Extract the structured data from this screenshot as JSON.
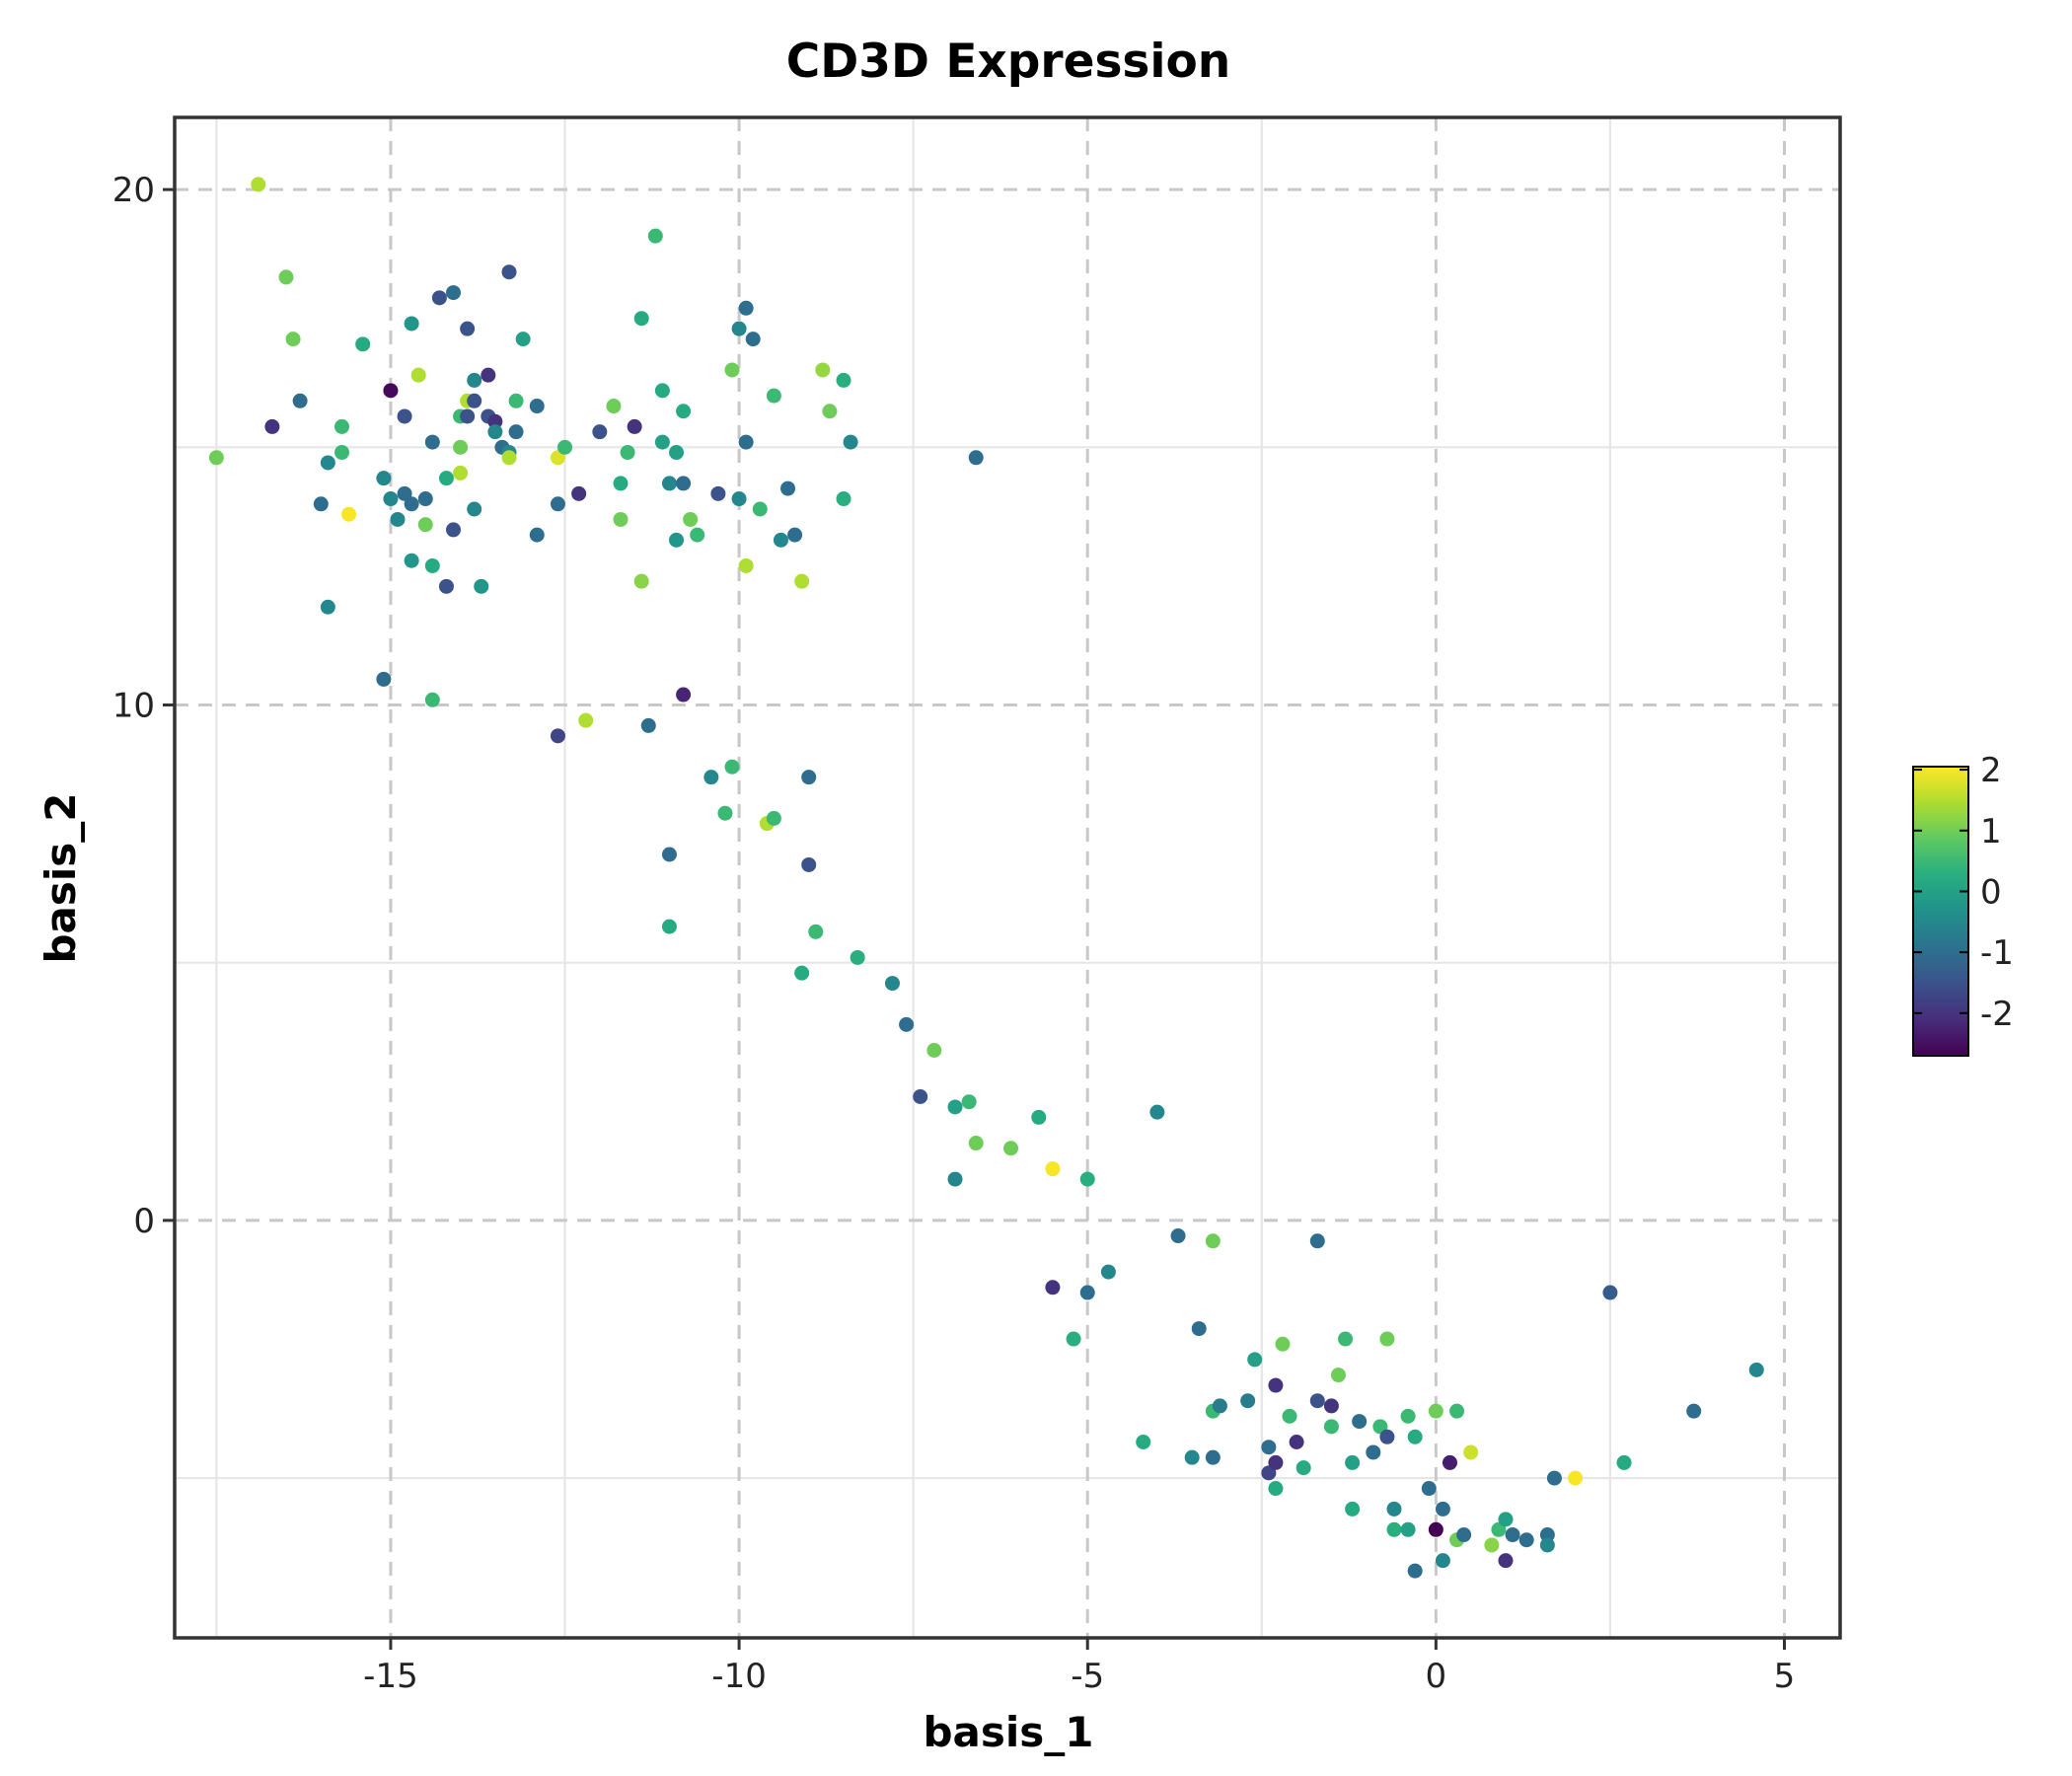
{
  "chart_data": {
    "type": "scatter",
    "title": "CD3D Expression",
    "xlabel": "basis_1",
    "ylabel": "basis_2",
    "xlim": [
      -18.1,
      5.8
    ],
    "ylim": [
      -8.1,
      21.4
    ],
    "x_ticks": [
      -15,
      -10,
      -5,
      0,
      5
    ],
    "x_tick_labels": [
      "-15",
      "-10",
      "-5",
      "0",
      "5"
    ],
    "y_ticks": [
      0,
      10,
      20
    ],
    "y_tick_labels": [
      "0",
      "10",
      "20"
    ],
    "colorbar": {
      "colormap": "viridis",
      "range": [
        -2.7,
        2.05
      ],
      "ticks": [
        2,
        1,
        0,
        -1,
        -2
      ],
      "tick_labels": [
        "2",
        "1",
        "0",
        "-1",
        "-2"
      ]
    },
    "grid": "dashed major, light minor",
    "points": [
      {
        "x": -17.5,
        "y": 14.8,
        "v": 1.0
      },
      {
        "x": -16.9,
        "y": 20.1,
        "v": 1.5
      },
      {
        "x": -16.7,
        "y": 15.4,
        "v": -2.0
      },
      {
        "x": -16.5,
        "y": 18.3,
        "v": 1.0
      },
      {
        "x": -16.4,
        "y": 17.1,
        "v": 1.0
      },
      {
        "x": -16.3,
        "y": 15.9,
        "v": -1.0
      },
      {
        "x": -16.0,
        "y": 13.9,
        "v": -1.0
      },
      {
        "x": -15.9,
        "y": 14.7,
        "v": -0.5
      },
      {
        "x": -15.9,
        "y": 11.9,
        "v": -0.5
      },
      {
        "x": -15.7,
        "y": 15.4,
        "v": 0.5
      },
      {
        "x": -15.7,
        "y": 14.9,
        "v": 0.5
      },
      {
        "x": -15.6,
        "y": 13.7,
        "v": 2.0
      },
      {
        "x": -15.4,
        "y": 17.0,
        "v": 0.2
      },
      {
        "x": -15.1,
        "y": 10.5,
        "v": -1.0
      },
      {
        "x": -15.1,
        "y": 14.4,
        "v": -0.5
      },
      {
        "x": -15.0,
        "y": 16.1,
        "v": -2.6
      },
      {
        "x": -15.0,
        "y": 14.0,
        "v": -0.5
      },
      {
        "x": -14.9,
        "y": 13.6,
        "v": -0.5
      },
      {
        "x": -14.8,
        "y": 15.6,
        "v": -1.5
      },
      {
        "x": -14.8,
        "y": 14.1,
        "v": -1.0
      },
      {
        "x": -14.7,
        "y": 17.4,
        "v": -0.2
      },
      {
        "x": -14.7,
        "y": 12.8,
        "v": -0.2
      },
      {
        "x": -14.7,
        "y": 13.9,
        "v": -1.0
      },
      {
        "x": -14.6,
        "y": 16.4,
        "v": 1.5
      },
      {
        "x": -14.5,
        "y": 14.0,
        "v": -1.0
      },
      {
        "x": -14.5,
        "y": 13.5,
        "v": 1.0
      },
      {
        "x": -14.4,
        "y": 15.1,
        "v": -1.0
      },
      {
        "x": -14.4,
        "y": 12.7,
        "v": 0.2
      },
      {
        "x": -14.4,
        "y": 10.1,
        "v": 0.5
      },
      {
        "x": -14.3,
        "y": 17.9,
        "v": -1.5
      },
      {
        "x": -14.2,
        "y": 14.4,
        "v": 0.2
      },
      {
        "x": -14.2,
        "y": 12.3,
        "v": -1.5
      },
      {
        "x": -14.1,
        "y": 18.0,
        "v": -1.0
      },
      {
        "x": -14.1,
        "y": 13.4,
        "v": -1.5
      },
      {
        "x": -14.0,
        "y": 15.6,
        "v": 0.5
      },
      {
        "x": -14.0,
        "y": 15.0,
        "v": 1.0
      },
      {
        "x": -14.0,
        "y": 14.5,
        "v": 1.5
      },
      {
        "x": -13.9,
        "y": 17.3,
        "v": -1.5
      },
      {
        "x": -13.9,
        "y": 15.6,
        "v": -1.5
      },
      {
        "x": -13.9,
        "y": 15.9,
        "v": 1.5
      },
      {
        "x": -13.8,
        "y": 15.9,
        "v": -1.5
      },
      {
        "x": -13.8,
        "y": 16.3,
        "v": -0.5
      },
      {
        "x": -13.8,
        "y": 13.8,
        "v": -0.5
      },
      {
        "x": -13.7,
        "y": 12.3,
        "v": -0.2
      },
      {
        "x": -13.6,
        "y": 16.4,
        "v": -2.0
      },
      {
        "x": -13.6,
        "y": 15.6,
        "v": -1.5
      },
      {
        "x": -13.5,
        "y": 15.5,
        "v": -2.0
      },
      {
        "x": -13.5,
        "y": 15.3,
        "v": -0.5
      },
      {
        "x": -13.4,
        "y": 15.0,
        "v": -1.0
      },
      {
        "x": -13.3,
        "y": 14.9,
        "v": -0.5
      },
      {
        "x": -13.3,
        "y": 18.4,
        "v": -1.5
      },
      {
        "x": -13.3,
        "y": 14.8,
        "v": 1.5
      },
      {
        "x": -13.2,
        "y": 15.9,
        "v": 0.5
      },
      {
        "x": -13.2,
        "y": 15.3,
        "v": -1.0
      },
      {
        "x": -13.1,
        "y": 17.1,
        "v": 0.0
      },
      {
        "x": -12.9,
        "y": 15.8,
        "v": -1.0
      },
      {
        "x": -12.9,
        "y": 13.3,
        "v": -1.0
      },
      {
        "x": -12.6,
        "y": 14.8,
        "v": 1.8
      },
      {
        "x": -12.6,
        "y": 13.9,
        "v": -1.0
      },
      {
        "x": -12.6,
        "y": 9.4,
        "v": -1.7
      },
      {
        "x": -12.5,
        "y": 15.0,
        "v": 0.5
      },
      {
        "x": -12.3,
        "y": 14.1,
        "v": -2.0
      },
      {
        "x": -12.2,
        "y": 9.7,
        "v": 1.5
      },
      {
        "x": -12.0,
        "y": 15.3,
        "v": -1.5
      },
      {
        "x": -11.8,
        "y": 15.8,
        "v": 1.0
      },
      {
        "x": -11.7,
        "y": 14.3,
        "v": 0.2
      },
      {
        "x": -11.7,
        "y": 13.6,
        "v": 1.0
      },
      {
        "x": -11.6,
        "y": 14.9,
        "v": 0.5
      },
      {
        "x": -11.5,
        "y": 15.4,
        "v": -2.0
      },
      {
        "x": -11.4,
        "y": 17.5,
        "v": 0.2
      },
      {
        "x": -11.4,
        "y": 12.4,
        "v": 1.2
      },
      {
        "x": -11.3,
        "y": 9.6,
        "v": -1.0
      },
      {
        "x": -11.2,
        "y": 19.1,
        "v": 0.5
      },
      {
        "x": -11.1,
        "y": 16.1,
        "v": 0.2
      },
      {
        "x": -11.1,
        "y": 15.1,
        "v": 0.0
      },
      {
        "x": -11.0,
        "y": 14.3,
        "v": -0.5
      },
      {
        "x": -11.0,
        "y": 7.1,
        "v": -1.0
      },
      {
        "x": -11.0,
        "y": 5.7,
        "v": 0.2
      },
      {
        "x": -10.9,
        "y": 14.9,
        "v": 0.0
      },
      {
        "x": -10.9,
        "y": 13.2,
        "v": -0.2
      },
      {
        "x": -10.8,
        "y": 15.7,
        "v": 0.2
      },
      {
        "x": -10.8,
        "y": 14.3,
        "v": -1.0
      },
      {
        "x": -10.8,
        "y": 10.2,
        "v": -2.2
      },
      {
        "x": -10.7,
        "y": 13.6,
        "v": 1.0
      },
      {
        "x": -10.6,
        "y": 13.3,
        "v": 0.5
      },
      {
        "x": -10.4,
        "y": 8.6,
        "v": -0.5
      },
      {
        "x": -10.3,
        "y": 14.1,
        "v": -1.5
      },
      {
        "x": -10.2,
        "y": 7.9,
        "v": 0.5
      },
      {
        "x": -10.1,
        "y": 8.8,
        "v": 0.5
      },
      {
        "x": -10.1,
        "y": 16.5,
        "v": 1.0
      },
      {
        "x": -10.0,
        "y": 17.3,
        "v": -0.5
      },
      {
        "x": -10.0,
        "y": 14.0,
        "v": -0.5
      },
      {
        "x": -9.9,
        "y": 15.1,
        "v": -1.0
      },
      {
        "x": -9.9,
        "y": 17.7,
        "v": -1.0
      },
      {
        "x": -9.9,
        "y": 12.7,
        "v": 1.5
      },
      {
        "x": -9.8,
        "y": 17.1,
        "v": -1.0
      },
      {
        "x": -9.7,
        "y": 13.8,
        "v": 0.5
      },
      {
        "x": -9.6,
        "y": 7.7,
        "v": 1.5
      },
      {
        "x": -9.5,
        "y": 16.0,
        "v": 0.5
      },
      {
        "x": -9.5,
        "y": 7.8,
        "v": 0.5
      },
      {
        "x": -9.4,
        "y": 13.2,
        "v": -0.5
      },
      {
        "x": -9.3,
        "y": 14.2,
        "v": -1.0
      },
      {
        "x": -9.2,
        "y": 13.3,
        "v": -1.0
      },
      {
        "x": -9.1,
        "y": 4.8,
        "v": 0.2
      },
      {
        "x": -9.1,
        "y": 12.4,
        "v": 1.5
      },
      {
        "x": -9.0,
        "y": 8.6,
        "v": -1.0
      },
      {
        "x": -9.0,
        "y": 6.9,
        "v": -1.5
      },
      {
        "x": -8.9,
        "y": 5.6,
        "v": 0.5
      },
      {
        "x": -8.8,
        "y": 16.5,
        "v": 1.3
      },
      {
        "x": -8.7,
        "y": 15.7,
        "v": 1.0
      },
      {
        "x": -8.5,
        "y": 14.0,
        "v": 0.3
      },
      {
        "x": -8.5,
        "y": 16.3,
        "v": 0.3
      },
      {
        "x": -8.4,
        "y": 15.1,
        "v": -0.5
      },
      {
        "x": -8.3,
        "y": 5.1,
        "v": 0.3
      },
      {
        "x": -7.8,
        "y": 4.6,
        "v": -0.5
      },
      {
        "x": -7.6,
        "y": 3.8,
        "v": -1.0
      },
      {
        "x": -7.4,
        "y": 2.4,
        "v": -1.5
      },
      {
        "x": -7.2,
        "y": 3.3,
        "v": 1.0
      },
      {
        "x": -6.9,
        "y": 2.2,
        "v": 0.0
      },
      {
        "x": -6.9,
        "y": 0.8,
        "v": -0.5
      },
      {
        "x": -6.7,
        "y": 2.3,
        "v": 0.5
      },
      {
        "x": -6.6,
        "y": 1.5,
        "v": 1.0
      },
      {
        "x": -6.6,
        "y": 14.8,
        "v": -1.0
      },
      {
        "x": -6.1,
        "y": 1.4,
        "v": 1.0
      },
      {
        "x": -5.7,
        "y": 2.0,
        "v": 0.2
      },
      {
        "x": -5.5,
        "y": 1.0,
        "v": 2.0
      },
      {
        "x": -5.0,
        "y": 0.8,
        "v": 0.3
      },
      {
        "x": -4.0,
        "y": 2.1,
        "v": -0.5
      },
      {
        "x": -3.7,
        "y": -0.3,
        "v": -1.0
      },
      {
        "x": -3.2,
        "y": -0.4,
        "v": 1.0
      },
      {
        "x": -1.7,
        "y": -0.4,
        "v": -1.0
      },
      {
        "x": -5.5,
        "y": -1.3,
        "v": -2.0
      },
      {
        "x": -5.0,
        "y": -1.4,
        "v": -1.0
      },
      {
        "x": -4.7,
        "y": -1.0,
        "v": -0.5
      },
      {
        "x": -5.2,
        "y": -2.3,
        "v": 0.3
      },
      {
        "x": -4.2,
        "y": -4.3,
        "v": 0.2
      },
      {
        "x": -3.4,
        "y": -2.1,
        "v": -1.0
      },
      {
        "x": -3.5,
        "y": -4.6,
        "v": -0.5
      },
      {
        "x": -3.2,
        "y": -3.7,
        "v": 0.5
      },
      {
        "x": -3.2,
        "y": -4.6,
        "v": -1.0
      },
      {
        "x": -3.1,
        "y": -3.6,
        "v": -0.7
      },
      {
        "x": -2.7,
        "y": -3.5,
        "v": -0.7
      },
      {
        "x": -2.6,
        "y": -2.7,
        "v": 0.0
      },
      {
        "x": -2.4,
        "y": -4.4,
        "v": -1.0
      },
      {
        "x": -2.4,
        "y": -4.9,
        "v": -1.7
      },
      {
        "x": -2.3,
        "y": -4.7,
        "v": -2.0
      },
      {
        "x": -2.3,
        "y": -5.2,
        "v": 0.2
      },
      {
        "x": -2.3,
        "y": -3.2,
        "v": -2.0
      },
      {
        "x": -2.2,
        "y": -2.4,
        "v": 1.0
      },
      {
        "x": -2.1,
        "y": -3.8,
        "v": 0.5
      },
      {
        "x": -2.0,
        "y": -4.3,
        "v": -2.0
      },
      {
        "x": -1.9,
        "y": -4.8,
        "v": 0.2
      },
      {
        "x": -1.7,
        "y": -3.5,
        "v": -1.5
      },
      {
        "x": -1.5,
        "y": -4.0,
        "v": 0.5
      },
      {
        "x": -1.5,
        "y": -3.6,
        "v": -2.0
      },
      {
        "x": -1.4,
        "y": -3.0,
        "v": 1.0
      },
      {
        "x": -1.3,
        "y": -2.3,
        "v": 0.5
      },
      {
        "x": -1.2,
        "y": -5.6,
        "v": 0.2
      },
      {
        "x": -1.2,
        "y": -4.7,
        "v": 0.0
      },
      {
        "x": -1.1,
        "y": -3.9,
        "v": -1.0
      },
      {
        "x": -0.9,
        "y": -4.5,
        "v": -1.0
      },
      {
        "x": -0.8,
        "y": -4.0,
        "v": 0.5
      },
      {
        "x": -0.7,
        "y": -4.2,
        "v": -1.5
      },
      {
        "x": -0.7,
        "y": -2.3,
        "v": 1.0
      },
      {
        "x": -0.6,
        "y": -5.6,
        "v": -0.5
      },
      {
        "x": -0.6,
        "y": -6.0,
        "v": 0.3
      },
      {
        "x": -0.4,
        "y": -3.8,
        "v": 0.5
      },
      {
        "x": -0.4,
        "y": -6.0,
        "v": 0.0
      },
      {
        "x": -0.3,
        "y": -4.2,
        "v": 0.2
      },
      {
        "x": -0.3,
        "y": -6.8,
        "v": -1.0
      },
      {
        "x": -0.1,
        "y": -5.2,
        "v": -1.0
      },
      {
        "x": 0.0,
        "y": -6.0,
        "v": -2.7
      },
      {
        "x": 0.0,
        "y": -3.7,
        "v": 1.0
      },
      {
        "x": 0.1,
        "y": -5.6,
        "v": -1.0
      },
      {
        "x": 0.1,
        "y": -6.6,
        "v": -0.5
      },
      {
        "x": 0.2,
        "y": -4.7,
        "v": -2.3
      },
      {
        "x": 0.3,
        "y": -3.7,
        "v": 0.5
      },
      {
        "x": 0.3,
        "y": -6.2,
        "v": 1.0
      },
      {
        "x": 0.4,
        "y": -6.1,
        "v": -1.0
      },
      {
        "x": 0.5,
        "y": -4.5,
        "v": 1.7
      },
      {
        "x": 0.8,
        "y": -6.3,
        "v": 1.2
      },
      {
        "x": 0.9,
        "y": -6.0,
        "v": 0.5
      },
      {
        "x": 1.0,
        "y": -5.8,
        "v": 0.0
      },
      {
        "x": 1.0,
        "y": -6.6,
        "v": -2.0
      },
      {
        "x": 1.1,
        "y": -6.1,
        "v": -1.0
      },
      {
        "x": 1.3,
        "y": -6.2,
        "v": -1.0
      },
      {
        "x": 1.6,
        "y": -6.1,
        "v": -1.0
      },
      {
        "x": 1.6,
        "y": -6.3,
        "v": -0.5
      },
      {
        "x": 1.7,
        "y": -5.0,
        "v": -1.0
      },
      {
        "x": 2.0,
        "y": -5.0,
        "v": 2.0
      },
      {
        "x": 2.5,
        "y": -1.4,
        "v": -1.3
      },
      {
        "x": 2.7,
        "y": -4.7,
        "v": 0.2
      },
      {
        "x": 3.7,
        "y": -3.7,
        "v": -1.0
      },
      {
        "x": 4.6,
        "y": -2.9,
        "v": -0.5
      }
    ]
  }
}
